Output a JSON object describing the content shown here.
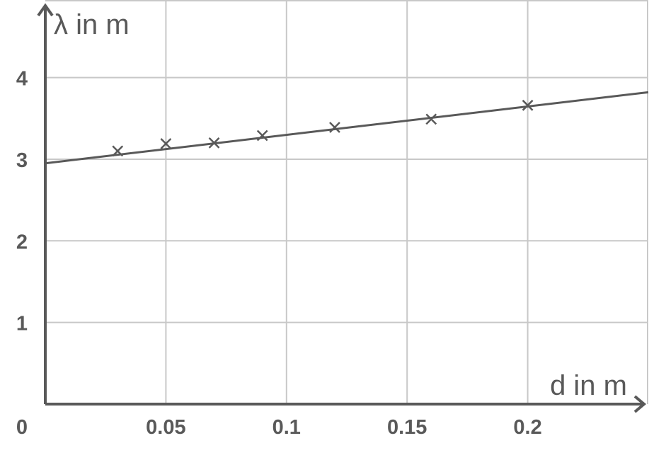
{
  "chart_data": {
    "type": "scatter",
    "xlabel": "d in m",
    "ylabel": "λ in m",
    "xlim": [
      0,
      0.25
    ],
    "ylim": [
      0,
      4.95
    ],
    "grid": true,
    "x_ticks": [
      {
        "value": 0,
        "label": "0"
      },
      {
        "value": 0.05,
        "label": "0.05"
      },
      {
        "value": 0.1,
        "label": "0.1"
      },
      {
        "value": 0.15,
        "label": "0.15"
      },
      {
        "value": 0.2,
        "label": "0.2"
      }
    ],
    "y_ticks": [
      {
        "value": 1,
        "label": "1"
      },
      {
        "value": 2,
        "label": "2"
      },
      {
        "value": 3,
        "label": "3"
      },
      {
        "value": 4,
        "label": "4"
      }
    ],
    "x_grid": [
      0.05,
      0.1,
      0.15,
      0.2,
      0.25
    ],
    "y_grid": [
      1,
      2,
      3,
      4,
      4.95
    ],
    "points": [
      {
        "x": 0.03,
        "y": 3.1
      },
      {
        "x": 0.05,
        "y": 3.19
      },
      {
        "x": 0.07,
        "y": 3.2
      },
      {
        "x": 0.09,
        "y": 3.29
      },
      {
        "x": 0.12,
        "y": 3.39
      },
      {
        "x": 0.16,
        "y": 3.49
      },
      {
        "x": 0.2,
        "y": 3.66
      }
    ],
    "fit_line": {
      "x": [
        0,
        0.25
      ],
      "y": [
        2.95,
        3.82
      ]
    },
    "marker": "x",
    "color": "#595959",
    "grid_color": "#c8c8c8"
  }
}
